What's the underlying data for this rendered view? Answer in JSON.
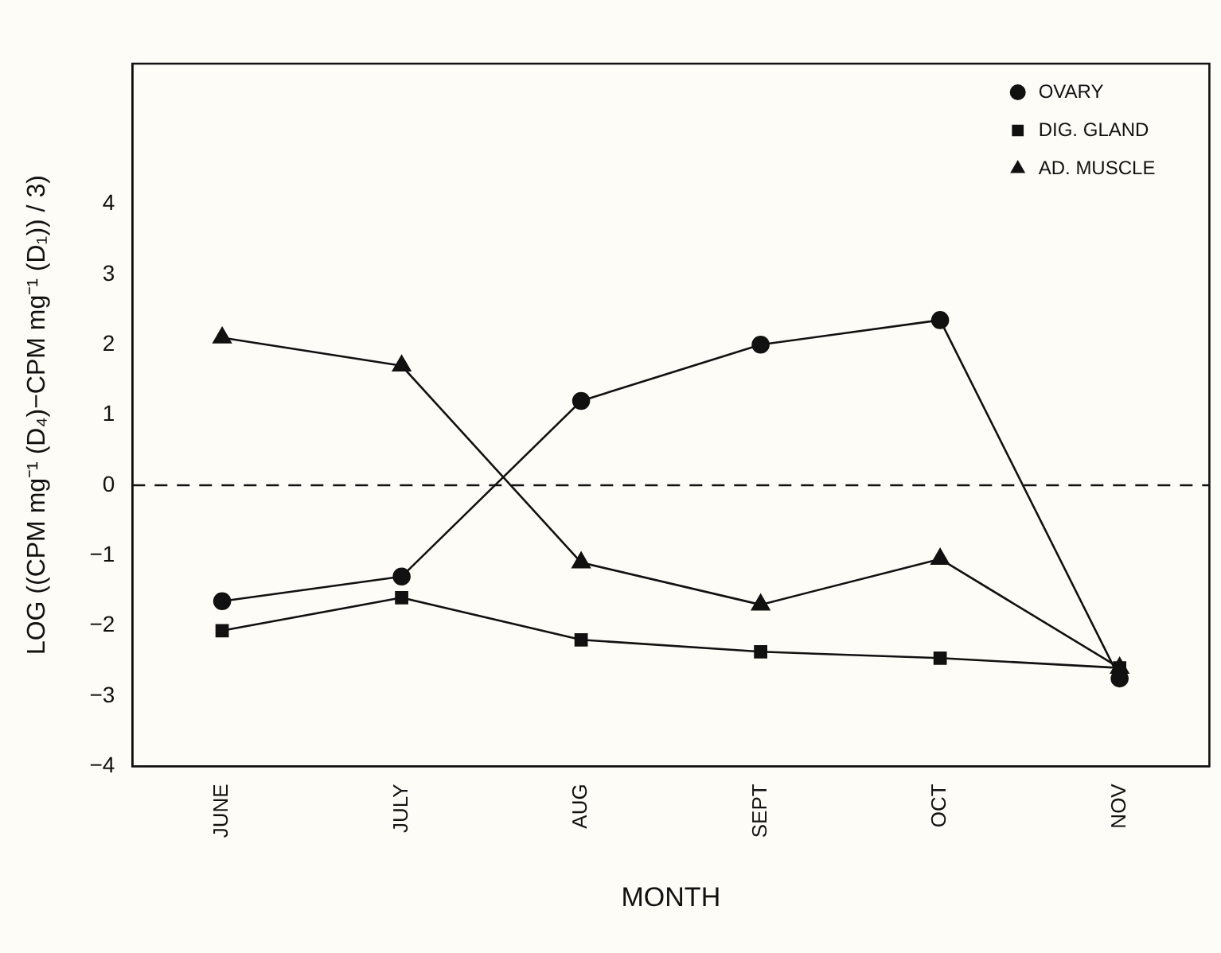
{
  "chart_data": {
    "type": "line",
    "xlabel": "MONTH",
    "ylabel": "LOG ((CPM mg⁻¹ (D₄)−CPM mg⁻¹ (D₁)) / 3)",
    "categories": [
      "JUNE",
      "JULY",
      "AUG",
      "SEPT",
      "OCT",
      "NOV"
    ],
    "series": [
      {
        "name": "OVARY",
        "color": "#111111",
        "marker": "circle",
        "values": [
          -1.65,
          -1.3,
          1.2,
          2.0,
          2.35,
          -2.75
        ]
      },
      {
        "name": "DIG. GLAND",
        "color": "#111111",
        "marker": "square",
        "values": [
          -2.07,
          -1.6,
          -2.2,
          -2.37,
          -2.46,
          -2.6
        ]
      },
      {
        "name": "AD. MUSCLE",
        "color": "#111111",
        "marker": "triangle",
        "values": [
          2.1,
          1.7,
          -1.1,
          -1.7,
          -1.05,
          -2.6
        ]
      }
    ],
    "ylim": [
      -4,
      6
    ],
    "yticks": [
      -4,
      -3,
      -2,
      -1,
      0,
      1,
      2,
      3,
      4
    ],
    "ref_lines": [
      {
        "axis": "y",
        "value": 0,
        "line_style": "dashed",
        "color": "#111111"
      }
    ],
    "grid": false,
    "legend": "top right",
    "line_style": "solid"
  }
}
